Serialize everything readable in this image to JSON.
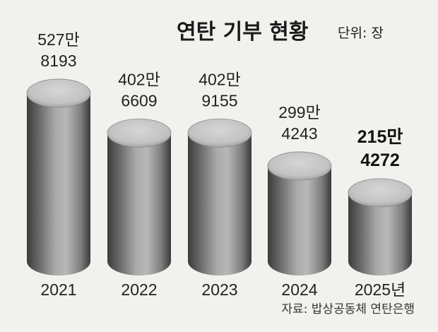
{
  "chart_data": {
    "type": "bar",
    "title": "연탄 기부 현황",
    "unit_label": "단위: 장",
    "categories": [
      "2021",
      "2022",
      "2023",
      "2024",
      "2025년"
    ],
    "values": [
      5278193,
      4026609,
      4029155,
      2994243,
      2154272
    ],
    "value_labels": [
      [
        "527만",
        "8193"
      ],
      [
        "402만",
        "6609"
      ],
      [
        "402만",
        "9155"
      ],
      [
        "299만",
        "4243"
      ],
      [
        "215만",
        "4272"
      ]
    ],
    "highlight_index": 4,
    "ylim": [
      0,
      5800000
    ],
    "grid": false,
    "source": "자료: 밥상공동체 연탄은행"
  },
  "colors": {
    "background": "#f1f1ee",
    "cylinder_dark": "#3a3a3a",
    "cylinder_mid": "#8e8e8e",
    "cylinder_light": "#b4b4b4",
    "top_light": "#cfcfcf",
    "text": "#1c1c1c"
  }
}
